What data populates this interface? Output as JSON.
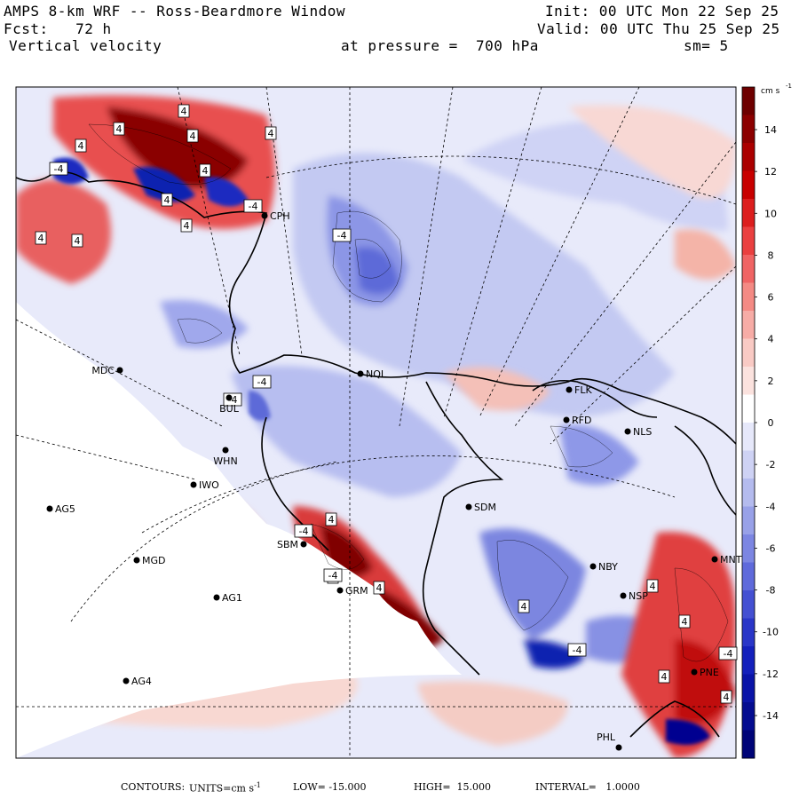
{
  "header": {
    "title": "AMPS 8-km WRF -- Ross-Beardmore Window",
    "forecast": "Fcst:   72 h",
    "field": "Vertical velocity",
    "pressure": "at pressure =  700 hPa",
    "init": "Init: 00 UTC Mon 22 Sep 25",
    "valid": "Valid: 00 UTC Thu 25 Sep 25",
    "smoothing": "sm= 5"
  },
  "colorbar": {
    "units": "cm s",
    "units_exp": "-1",
    "labels": [
      "14",
      "12",
      "10",
      "8",
      "6",
      "4",
      "2",
      "0",
      "-2",
      "-4",
      "-6",
      "-8",
      "-10",
      "-12",
      "-14"
    ]
  },
  "stations": [
    {
      "id": "CPH",
      "label": "CPH"
    },
    {
      "id": "NQL",
      "label": "NQL"
    },
    {
      "id": "MDC",
      "label": "MDC"
    },
    {
      "id": "FLK",
      "label": "FLK"
    },
    {
      "id": "RFD",
      "label": "RFD"
    },
    {
      "id": "NLS",
      "label": "NLS"
    },
    {
      "id": "WHN",
      "label": "WHN"
    },
    {
      "id": "IWO",
      "label": "IWO"
    },
    {
      "id": "AG5",
      "label": "AG5"
    },
    {
      "id": "SDM",
      "label": "SDM"
    },
    {
      "id": "SBM",
      "label": "SBM"
    },
    {
      "id": "MGD",
      "label": "MGD"
    },
    {
      "id": "NBY",
      "label": "NBY"
    },
    {
      "id": "AG1",
      "label": "AG1"
    },
    {
      "id": "GRM",
      "label": "GRM"
    },
    {
      "id": "NSP",
      "label": "NSP"
    },
    {
      "id": "MNT",
      "label": "MNT"
    },
    {
      "id": "AG4",
      "label": "AG4"
    },
    {
      "id": "PNE",
      "label": "PNE"
    },
    {
      "id": "PHL",
      "label": "PHL"
    },
    {
      "id": "BUL",
      "label": "BUL"
    }
  ],
  "contour_labels": [
    "4",
    "4",
    "4",
    "4",
    "4",
    "4",
    "4",
    "4",
    "4",
    "4",
    "4",
    "4",
    "4",
    "4",
    "4",
    "4",
    "4",
    "4",
    "-4",
    "-4",
    "-4",
    "-4",
    "-4",
    "-4",
    "-4",
    "-4",
    "-4"
  ],
  "footer": {
    "contours": "CONTOURS:",
    "units_label": "UNITS=cm s",
    "units_exp": "-1",
    "low": "LOW= -15.000",
    "high": "HIGH=  15.000",
    "interval": "INTERVAL=   1.0000"
  },
  "colors": {
    "strong_up": "#7a0000",
    "up": "#e02020",
    "weak_up": "#f7c8c0",
    "neutral": "#ffffff",
    "weak_down": "#d0d4f4",
    "down": "#6070e0",
    "strong_down": "#000090"
  }
}
